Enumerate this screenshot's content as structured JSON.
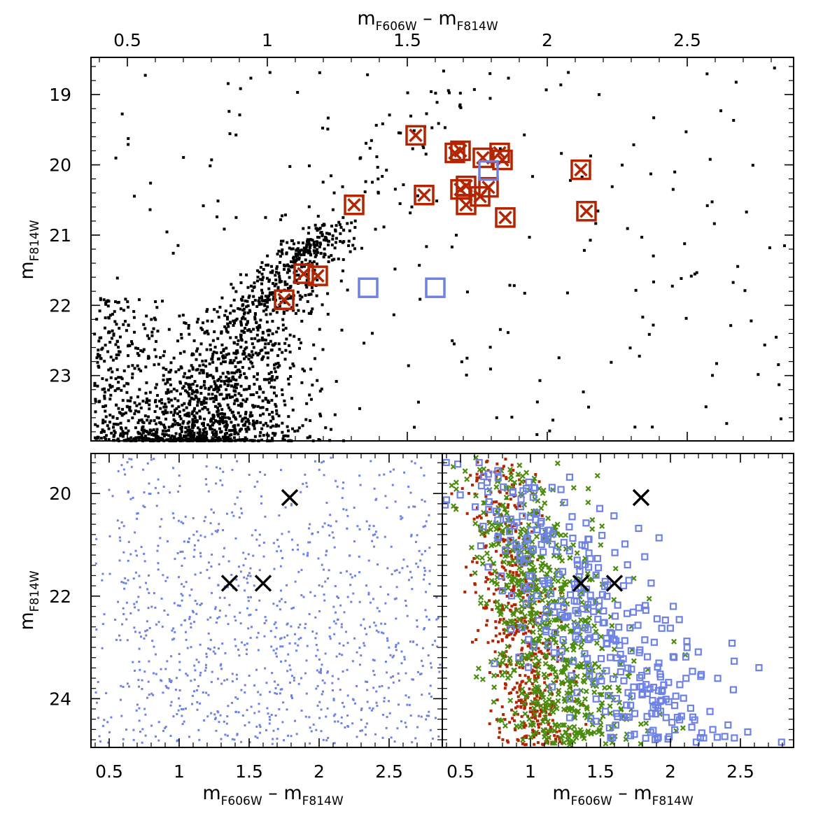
{
  "chart_data": [
    {
      "type": "scatter",
      "panel": "top",
      "xlabel": "m_F606W − m_F814W",
      "ylabel": "m_F814W",
      "x_axis_position": "top",
      "xlim": [
        0.37,
        2.88
      ],
      "ylim": [
        23.93,
        18.47
      ],
      "y_inverted": true,
      "xticks": [
        0.5,
        1,
        1.5,
        2,
        2.5
      ],
      "xtick_labels": [
        "0.5",
        "1",
        "1.5",
        "2",
        "2.5"
      ],
      "yticks": [
        19,
        20,
        21,
        22,
        23
      ],
      "ytick_labels": [
        "19",
        "20",
        "21",
        "22",
        "23"
      ],
      "colors": {
        "field": "#000000",
        "crossed_boxes": "#b32400",
        "open_boxes": "#6e82e6"
      },
      "series": [
        {
          "marker": "crossed-square",
          "color": "#b32400",
          "points": [
            [
              1.53,
              19.58
            ],
            [
              1.67,
              19.83
            ],
            [
              1.69,
              19.8
            ],
            [
              1.77,
              19.9
            ],
            [
              1.83,
              19.83
            ],
            [
              1.84,
              19.93
            ],
            [
              1.69,
              20.35
            ],
            [
              1.71,
              20.3
            ],
            [
              1.71,
              20.57
            ],
            [
              1.76,
              20.45
            ],
            [
              1.79,
              20.32
            ],
            [
              1.85,
              20.75
            ],
            [
              1.56,
              20.43
            ],
            [
              1.31,
              20.57
            ],
            [
              2.12,
              20.07
            ],
            [
              2.14,
              20.66
            ],
            [
              1.13,
              21.55
            ],
            [
              1.18,
              21.58
            ],
            [
              1.06,
              21.92
            ]
          ]
        },
        {
          "marker": "open-square",
          "color": "#6e82e6",
          "points": [
            [
              1.79,
              20.08
            ],
            [
              1.36,
              21.75
            ],
            [
              1.6,
              21.75
            ]
          ]
        },
        {
          "marker": "dot",
          "color": "#000000",
          "field": "dense main-sequence field population concentrated near color 0.9–1.1 and m_F814W 22–24"
        }
      ]
    },
    {
      "type": "scatter",
      "panel": "bottom-left",
      "xlabel": "m_F606W − m_F814W",
      "ylabel": "m_F814W",
      "xlim": [
        0.37,
        2.88
      ],
      "ylim": [
        24.95,
        19.22
      ],
      "y_inverted": true,
      "xticks": [
        0.5,
        1,
        1.5,
        2,
        2.5
      ],
      "xtick_labels": [
        "0.5",
        "1",
        "1.5",
        "2",
        "2.5"
      ],
      "yticks": [
        20,
        22,
        24
      ],
      "ytick_labels": [
        "20",
        "22",
        "24"
      ],
      "colors": {
        "model_points": "#6e82e6",
        "crosses": "#000000"
      },
      "series": [
        {
          "marker": "x",
          "color": "#000000",
          "points": [
            [
              1.79,
              20.08
            ],
            [
              1.36,
              21.75
            ],
            [
              1.6,
              21.75
            ]
          ]
        },
        {
          "marker": "dot",
          "color": "#6e82e6",
          "field": "uniform scatter of blue points spanning color 0.4–2.85 and m_F814W 19.3–24.9"
        }
      ]
    },
    {
      "type": "scatter",
      "panel": "bottom-right",
      "xlabel": "m_F606W − m_F814W",
      "xlim": [
        0.37,
        2.88
      ],
      "ylim": [
        24.95,
        19.22
      ],
      "y_inverted": true,
      "xticks": [
        0.5,
        1,
        1.5,
        2,
        2.5
      ],
      "xtick_labels": [
        "0.5",
        "1",
        "1.5",
        "2",
        "2.5"
      ],
      "colors": {
        "red_dots": "#b32400",
        "green_x": "#4b8c0f",
        "blue_squares": "#6e82e6",
        "crosses": "#000000"
      },
      "series": [
        {
          "marker": "x",
          "color": "#000000",
          "points": [
            [
              1.79,
              20.08
            ],
            [
              1.36,
              21.75
            ],
            [
              1.6,
              21.75
            ]
          ]
        },
        {
          "marker": "dot",
          "color": "#b32400",
          "field": "red points concentrated in a narrow band at color 0.6–1.3"
        },
        {
          "marker": "x",
          "color": "#4b8c0f",
          "field": "green crosses spanning color 0.6–2.0"
        },
        {
          "marker": "open-square",
          "color": "#6e82e6",
          "field": "blue open squares spanning color 0.5–2.88"
        }
      ]
    }
  ]
}
